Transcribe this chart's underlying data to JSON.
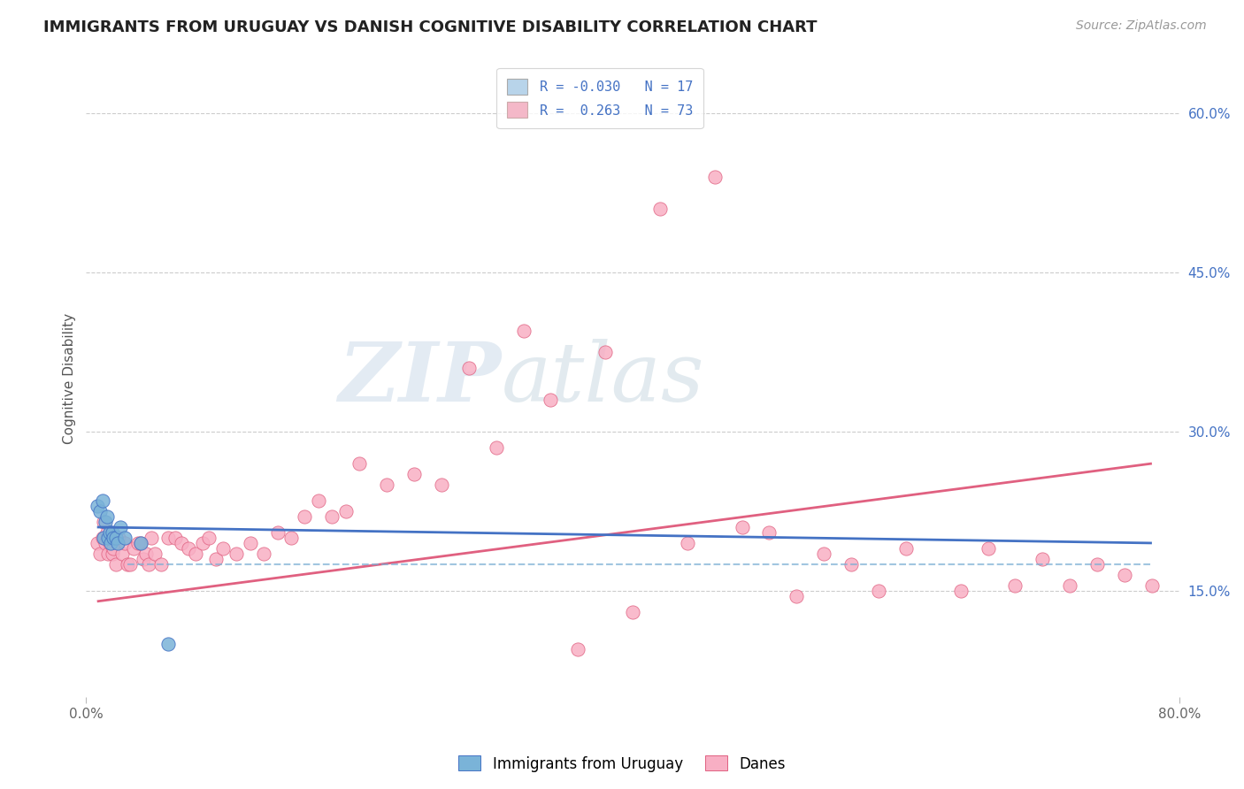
{
  "title": "IMMIGRANTS FROM URUGUAY VS DANISH COGNITIVE DISABILITY CORRELATION CHART",
  "source": "Source: ZipAtlas.com",
  "ylabel": "Cognitive Disability",
  "xlim": [
    0.0,
    0.8
  ],
  "ylim": [
    0.05,
    0.65
  ],
  "x_ticks": [
    0.0,
    0.8
  ],
  "x_tick_labels": [
    "0.0%",
    "80.0%"
  ],
  "y_tick_values_right": [
    0.15,
    0.3,
    0.45,
    0.6
  ],
  "y_tick_labels_right": [
    "15.0%",
    "30.0%",
    "45.0%",
    "60.0%"
  ],
  "background_color": "#ffffff",
  "grid_color": "#cccccc",
  "watermark_zip": "ZIP",
  "watermark_atlas": "atlas",
  "legend_r1": "-0.030",
  "legend_n1": "17",
  "legend_r2": "0.263",
  "legend_n2": "73",
  "legend_color1": "#b8d4ea",
  "legend_color2": "#f4b8c8",
  "legend_text_color": "#4472c4",
  "uruguay_dot_color": "#7ab3d8",
  "uruguay_dot_edge": "#4472c4",
  "uruguay_line_color": "#4472c4",
  "danes_dot_color": "#f8afc4",
  "danes_dot_edge": "#e06080",
  "danes_line_color": "#e06080",
  "dashed_line_color": "#7aaed4",
  "uruguay_x": [
    0.008,
    0.01,
    0.012,
    0.013,
    0.014,
    0.015,
    0.016,
    0.017,
    0.018,
    0.019,
    0.02,
    0.022,
    0.023,
    0.025,
    0.028,
    0.04,
    0.06
  ],
  "uruguay_y": [
    0.23,
    0.225,
    0.235,
    0.2,
    0.215,
    0.22,
    0.2,
    0.205,
    0.195,
    0.205,
    0.2,
    0.2,
    0.195,
    0.21,
    0.2,
    0.195,
    0.1
  ],
  "danes_x": [
    0.008,
    0.01,
    0.012,
    0.013,
    0.014,
    0.015,
    0.016,
    0.017,
    0.018,
    0.019,
    0.02,
    0.022,
    0.024,
    0.026,
    0.028,
    0.03,
    0.032,
    0.035,
    0.038,
    0.04,
    0.042,
    0.044,
    0.046,
    0.048,
    0.05,
    0.055,
    0.06,
    0.065,
    0.07,
    0.075,
    0.08,
    0.085,
    0.09,
    0.095,
    0.1,
    0.11,
    0.12,
    0.13,
    0.14,
    0.15,
    0.16,
    0.17,
    0.18,
    0.19,
    0.2,
    0.22,
    0.24,
    0.26,
    0.28,
    0.3,
    0.32,
    0.34,
    0.36,
    0.38,
    0.4,
    0.42,
    0.44,
    0.46,
    0.48,
    0.5,
    0.52,
    0.54,
    0.56,
    0.58,
    0.6,
    0.64,
    0.66,
    0.68,
    0.7,
    0.72,
    0.74,
    0.76,
    0.78
  ],
  "danes_y": [
    0.195,
    0.185,
    0.2,
    0.215,
    0.195,
    0.205,
    0.185,
    0.195,
    0.2,
    0.185,
    0.19,
    0.175,
    0.2,
    0.185,
    0.195,
    0.175,
    0.175,
    0.19,
    0.195,
    0.195,
    0.18,
    0.185,
    0.175,
    0.2,
    0.185,
    0.175,
    0.2,
    0.2,
    0.195,
    0.19,
    0.185,
    0.195,
    0.2,
    0.18,
    0.19,
    0.185,
    0.195,
    0.185,
    0.205,
    0.2,
    0.22,
    0.235,
    0.22,
    0.225,
    0.27,
    0.25,
    0.26,
    0.25,
    0.36,
    0.285,
    0.395,
    0.33,
    0.095,
    0.375,
    0.13,
    0.51,
    0.195,
    0.54,
    0.21,
    0.205,
    0.145,
    0.185,
    0.175,
    0.15,
    0.19,
    0.15,
    0.19,
    0.155,
    0.18,
    0.155,
    0.175,
    0.165,
    0.155
  ],
  "danes_line_x0": 0.008,
  "danes_line_x1": 0.78,
  "danes_line_y0": 0.14,
  "danes_line_y1": 0.27,
  "uruguay_line_x0": 0.008,
  "uruguay_line_x1": 0.78,
  "uruguay_line_y0": 0.21,
  "uruguay_line_y1": 0.195,
  "dashed_line_x0": 0.03,
  "dashed_line_x1": 0.78,
  "dashed_line_y": 0.175
}
